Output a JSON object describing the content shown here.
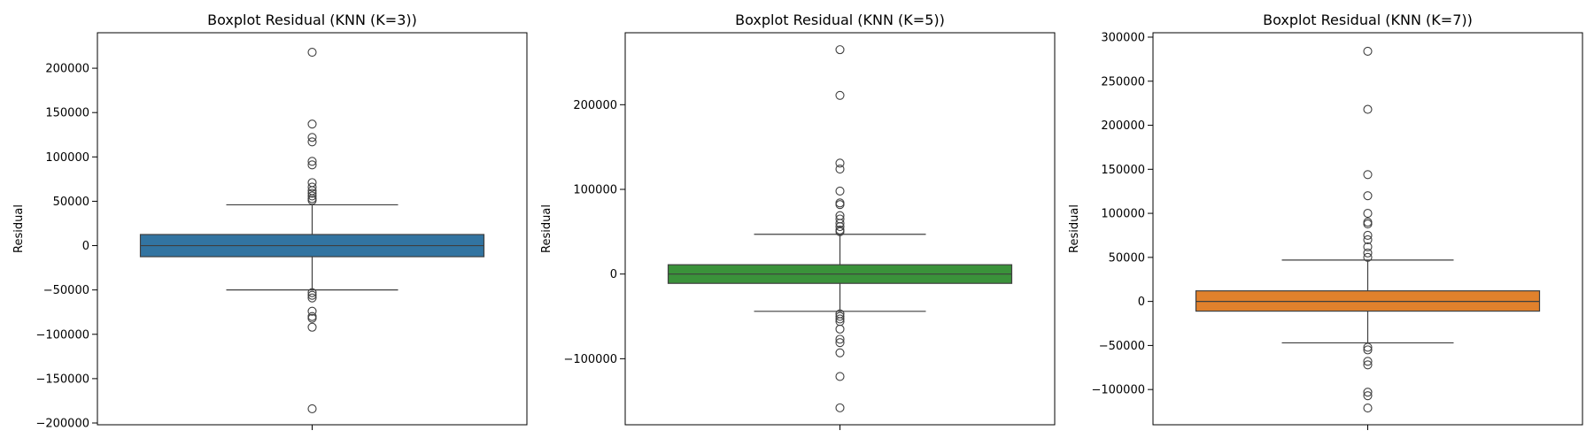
{
  "chart_data": [
    {
      "type": "boxplot",
      "title": "Boxplot Residual (KNN (K=3))",
      "ylabel": "Residual",
      "xlabel": "",
      "ylim": [
        -202000,
        240000
      ],
      "yticks": [
        -200000,
        -150000,
        -100000,
        -50000,
        0,
        50000,
        100000,
        150000,
        200000
      ],
      "ytick_labels": [
        "−200000",
        "−150000",
        "−100000",
        "−50000",
        "0",
        "50000",
        "100000",
        "150000",
        "200000"
      ],
      "box": {
        "whisker_low": -50000,
        "q1": -12500,
        "median": 0,
        "q3": 12500,
        "whisker_high": 46000
      },
      "outliers": [
        218000,
        137000,
        122000,
        117000,
        95000,
        91000,
        71000,
        66000,
        62000,
        59000,
        56000,
        53000,
        51000,
        -53000,
        -56000,
        -59000,
        -74000,
        -80000,
        -82000,
        -92000,
        -184000
      ],
      "color": "#3274a1"
    },
    {
      "type": "boxplot",
      "title": "Boxplot Residual (KNN (K=5))",
      "ylabel": "Residual",
      "xlabel": "",
      "ylim": [
        -178000,
        285000
      ],
      "yticks": [
        -100000,
        0,
        100000,
        200000
      ],
      "ytick_labels": [
        "−100000",
        "0",
        "100000",
        "200000"
      ],
      "box": {
        "whisker_low": -44000,
        "q1": -11000,
        "median": 0,
        "q3": 11000,
        "whisker_high": 47000
      },
      "outliers": [
        265000,
        211000,
        131000,
        124000,
        98000,
        84000,
        82000,
        69000,
        65000,
        60000,
        56000,
        52000,
        50000,
        -47000,
        -50000,
        -53000,
        -56000,
        -65000,
        -77000,
        -81000,
        -93000,
        -121000,
        -158000
      ],
      "color": "#3a923a"
    },
    {
      "type": "boxplot",
      "title": "Boxplot Residual (KNN (K=7))",
      "ylabel": "Residual",
      "xlabel": "",
      "ylim": [
        -140000,
        305000
      ],
      "yticks": [
        -100000,
        -50000,
        0,
        50000,
        100000,
        150000,
        200000,
        250000,
        300000
      ],
      "ytick_labels": [
        "−100000",
        "−50000",
        "0",
        "50000",
        "100000",
        "150000",
        "200000",
        "250000",
        "300000"
      ],
      "box": {
        "whisker_low": -47000,
        "q1": -11000,
        "median": 0,
        "q3": 12000,
        "whisker_high": 47000
      },
      "outliers": [
        284000,
        218000,
        144000,
        120000,
        100000,
        90000,
        88000,
        75000,
        70000,
        62000,
        55000,
        50000,
        -52000,
        -55000,
        -68000,
        -72000,
        -103000,
        -107000,
        -121000
      ],
      "color": "#e1812c"
    }
  ]
}
